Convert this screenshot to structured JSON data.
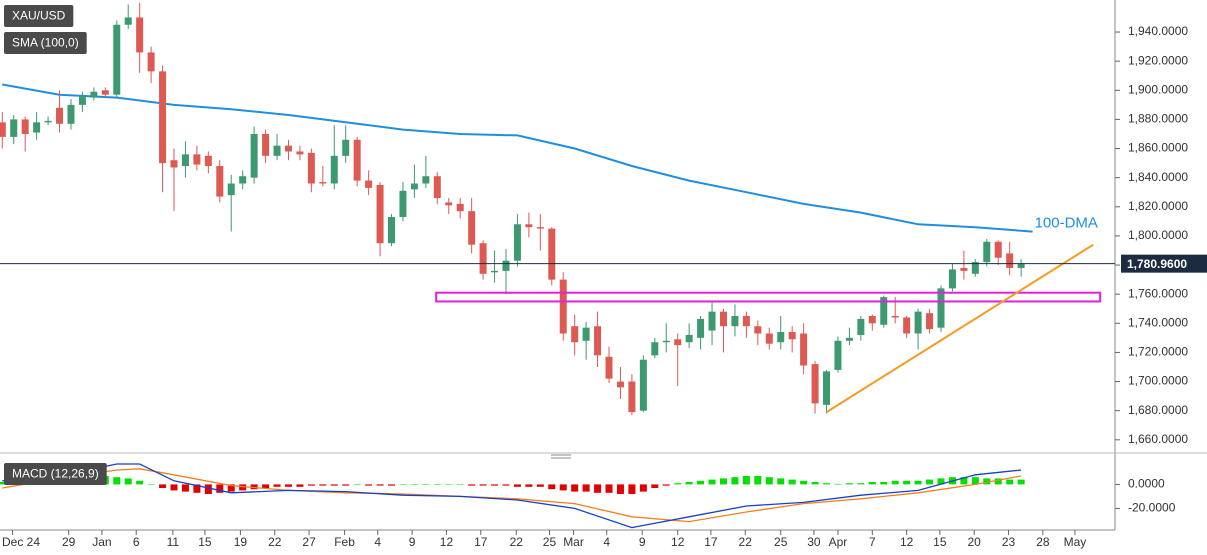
{
  "chart_data": [
    {
      "type": "candlestick",
      "title": "XAU/USD",
      "xlim": [
        -0.2,
        97.2
      ],
      "xticks": [
        {
          "value": 0.9,
          "label": "Dec 24"
        },
        {
          "value": 5.8,
          "label": "29"
        },
        {
          "value": 8.7,
          "label": "Jan"
        },
        {
          "value": 11.7,
          "label": "6"
        },
        {
          "value": 14.9,
          "label": "11"
        },
        {
          "value": 17.7,
          "label": "15"
        },
        {
          "value": 20.8,
          "label": "19"
        },
        {
          "value": 23.8,
          "label": "22"
        },
        {
          "value": 26.8,
          "label": "27"
        },
        {
          "value": 29.9,
          "label": "Feb"
        },
        {
          "value": 32.8,
          "label": "4"
        },
        {
          "value": 35.8,
          "label": "9"
        },
        {
          "value": 38.8,
          "label": "12"
        },
        {
          "value": 41.8,
          "label": "17"
        },
        {
          "value": 44.9,
          "label": "22"
        },
        {
          "value": 47.8,
          "label": "25"
        },
        {
          "value": 49.9,
          "label": "Mar"
        },
        {
          "value": 52.8,
          "label": "4"
        },
        {
          "value": 55.9,
          "label": "9"
        },
        {
          "value": 59.0,
          "label": "12"
        },
        {
          "value": 61.9,
          "label": "17"
        },
        {
          "value": 64.9,
          "label": "22"
        },
        {
          "value": 68.0,
          "label": "25"
        },
        {
          "value": 70.9,
          "label": "30"
        },
        {
          "value": 73.0,
          "label": "Apr"
        },
        {
          "value": 76.0,
          "label": "7"
        },
        {
          "value": 79.0,
          "label": "12"
        },
        {
          "value": 81.9,
          "label": "15"
        },
        {
          "value": 84.9,
          "label": "20"
        },
        {
          "value": 87.9,
          "label": "23"
        },
        {
          "value": 90.9,
          "label": "28"
        },
        {
          "value": 93.7,
          "label": "May"
        }
      ],
      "ylim": [
        1653,
        1962
      ],
      "yticks": [
        {
          "value": 1660,
          "label": "1,660.0000"
        },
        {
          "value": 1680,
          "label": "1,680.0000"
        },
        {
          "value": 1700,
          "label": "1,700.0000"
        },
        {
          "value": 1720,
          "label": "1,720.0000"
        },
        {
          "value": 1740,
          "label": "1,740.0000"
        },
        {
          "value": 1760,
          "label": "1,760.0000"
        },
        {
          "value": 1780,
          "label": "1,780.0000"
        },
        {
          "value": 1800,
          "label": "1,800.0000"
        },
        {
          "value": 1820,
          "label": "1,820.0000"
        },
        {
          "value": 1840,
          "label": "1,840.0000"
        },
        {
          "value": 1860,
          "label": "1,860.0000"
        },
        {
          "value": 1880,
          "label": "1,880.0000"
        },
        {
          "value": 1900,
          "label": "1,900.0000"
        },
        {
          "value": 1920,
          "label": "1,920.0000"
        },
        {
          "value": 1940,
          "label": "1,940.0000"
        }
      ],
      "up_color": "#3d9970",
      "down_color": "#dd5a52",
      "open": [
        1878,
        1868,
        1880,
        1871,
        1878,
        1888,
        1877,
        1890,
        1895,
        1900,
        1897,
        1945,
        1950,
        1926,
        1913,
        1852,
        1848,
        1856,
        1855,
        1848,
        1828,
        1836,
        1840,
        1870,
        1855,
        1862,
        1858,
        1857,
        1837,
        1836,
        1855,
        1866,
        1838,
        1835,
        1795,
        1813,
        1832,
        1836,
        1841,
        1823,
        1822,
        1817,
        1795,
        1775,
        1776,
        1783,
        1808,
        1806,
        1805,
        1770,
        1738,
        1728,
        1738,
        1717,
        1700,
        1700,
        1680,
        1718,
        1727,
        1729,
        1727,
        1730,
        1735,
        1748,
        1738,
        1745,
        1738,
        1733,
        1727,
        1734,
        1733,
        1712,
        1684,
        1708,
        1728,
        1732,
        1745,
        1739,
        1745,
        1744,
        1733,
        1747,
        1737,
        1764,
        1778,
        1774,
        1782,
        1796,
        1788,
        1778
      ],
      "high": [
        1885,
        1883,
        1882,
        1885,
        1882,
        1900,
        1894,
        1899,
        1902,
        1902,
        1948,
        1959,
        1960,
        1930,
        1917,
        1860,
        1865,
        1862,
        1858,
        1852,
        1842,
        1845,
        1875,
        1873,
        1870,
        1866,
        1862,
        1860,
        1848,
        1876,
        1876,
        1868,
        1845,
        1837,
        1815,
        1837,
        1849,
        1855,
        1844,
        1826,
        1826,
        1826,
        1797,
        1790,
        1791,
        1815,
        1816,
        1815,
        1806,
        1775,
        1746,
        1741,
        1748,
        1724,
        1710,
        1705,
        1718,
        1730,
        1740,
        1733,
        1740,
        1745,
        1755,
        1750,
        1753,
        1748,
        1742,
        1737,
        1745,
        1738,
        1740,
        1714,
        1708,
        1731,
        1737,
        1745,
        1746,
        1759,
        1758,
        1745,
        1750,
        1750,
        1766,
        1781,
        1790,
        1784,
        1798,
        1797,
        1796,
        1784
      ],
      "low": [
        1860,
        1863,
        1858,
        1866,
        1876,
        1871,
        1873,
        1885,
        1893,
        1895,
        1895,
        1942,
        1912,
        1905,
        1830,
        1817,
        1840,
        1845,
        1843,
        1823,
        1803,
        1832,
        1836,
        1850,
        1852,
        1852,
        1852,
        1830,
        1834,
        1832,
        1850,
        1834,
        1828,
        1786,
        1793,
        1810,
        1826,
        1833,
        1822,
        1815,
        1812,
        1788,
        1770,
        1768,
        1760,
        1779,
        1799,
        1790,
        1766,
        1728,
        1718,
        1715,
        1710,
        1699,
        1688,
        1677,
        1679,
        1716,
        1720,
        1697,
        1723,
        1722,
        1725,
        1720,
        1731,
        1730,
        1725,
        1722,
        1722,
        1720,
        1705,
        1678,
        1678,
        1706,
        1725,
        1728,
        1735,
        1737,
        1740,
        1730,
        1722,
        1733,
        1734,
        1762,
        1770,
        1772,
        1779,
        1780,
        1773,
        1772
      ],
      "close": [
        1868,
        1880,
        1870,
        1878,
        1879,
        1877,
        1890,
        1896,
        1899,
        1897,
        1945,
        1950,
        1926,
        1913,
        1850,
        1847,
        1856,
        1849,
        1848,
        1827,
        1836,
        1841,
        1870,
        1855,
        1862,
        1858,
        1856,
        1836,
        1836,
        1855,
        1866,
        1838,
        1833,
        1795,
        1813,
        1831,
        1836,
        1841,
        1826,
        1821,
        1817,
        1794,
        1774,
        1776,
        1783,
        1808,
        1806,
        1805,
        1770,
        1733,
        1727,
        1737,
        1718,
        1702,
        1696,
        1679,
        1715,
        1727,
        1728,
        1725,
        1732,
        1743,
        1748,
        1738,
        1745,
        1738,
        1733,
        1726,
        1734,
        1729,
        1711,
        1685,
        1707,
        1728,
        1730,
        1743,
        1740,
        1758,
        1744,
        1733,
        1748,
        1736,
        1764,
        1777,
        1776,
        1782,
        1796,
        1785,
        1778,
        1780.96
      ],
      "sma": {
        "name": "SMA (100,0)",
        "color": "#1e8fe0",
        "x": [
          0,
          5,
          10,
          15,
          20,
          25,
          30,
          35,
          40,
          45,
          50,
          55,
          60,
          65,
          70,
          75,
          80,
          85,
          90
        ],
        "values": [
          1904,
          1897,
          1895,
          1890,
          1887,
          1883,
          1878,
          1873,
          1870,
          1869,
          1860,
          1848,
          1838,
          1830,
          1822,
          1816,
          1808,
          1806,
          1803
        ]
      },
      "annotation": "100-DMA",
      "last_price": {
        "value": 1780.96,
        "label": "1,780.9600"
      },
      "zone": {
        "color": "#e020e0",
        "x": [
          37.9,
          95.9
        ],
        "values": [
          1755,
          1761
        ]
      },
      "trendline": {
        "color": "#f59b1f",
        "x": [
          72.0,
          95.3
        ],
        "values": [
          1679,
          1794
        ]
      }
    },
    {
      "type": "macd",
      "title": "MACD (12,26,9)",
      "xlim": [
        -0.2,
        97.2
      ],
      "ylim": [
        -38,
        22
      ],
      "yticks": [
        {
          "value": 0,
          "label": "0.0000"
        },
        {
          "value": -20,
          "label": "-20.0000"
        }
      ],
      "histogram": {
        "up_color": "#00e000",
        "down_color": "#e00000",
        "values": [
          2,
          3,
          4,
          4,
          5,
          6,
          6,
          6,
          7,
          7,
          6,
          5,
          3,
          0,
          -3,
          -5,
          -6,
          -7,
          -8,
          -7,
          -6,
          -5,
          -4,
          -3,
          -2,
          -2,
          -2,
          -1,
          -1,
          -1,
          -1,
          0,
          -1,
          -1,
          -1,
          0,
          0,
          0,
          0,
          0,
          0,
          -1,
          -1,
          -1,
          -1,
          -2,
          -2,
          -2,
          -4,
          -5,
          -6,
          -6,
          -7,
          -7,
          -8,
          -8,
          -6,
          -3,
          -1,
          1,
          2,
          3,
          4,
          5,
          6,
          7,
          7,
          6,
          5,
          4,
          3,
          2,
          1,
          0,
          1,
          1,
          2,
          2,
          3,
          3,
          3,
          4,
          5,
          6,
          6,
          6,
          5,
          5,
          4,
          4
        ]
      },
      "macd_line": {
        "color": "#1a3fc4",
        "x": [
          0,
          5,
          10,
          12,
          15,
          20,
          25,
          30,
          35,
          40,
          45,
          50,
          55,
          60,
          65,
          70,
          75,
          80,
          85,
          89
        ],
        "values": [
          3,
          7,
          17,
          17,
          3,
          -7,
          -5,
          -6,
          -9,
          -10,
          -13,
          -20,
          -36,
          -27,
          -18,
          -15,
          -9,
          -5,
          8,
          12
        ]
      },
      "signal_line": {
        "color": "#f08020",
        "x": [
          0,
          5,
          10,
          12,
          15,
          20,
          25,
          30,
          35,
          40,
          45,
          50,
          55,
          60,
          65,
          70,
          75,
          80,
          85,
          89
        ],
        "values": [
          -3,
          5,
          12,
          13,
          8,
          -1,
          -5,
          -7,
          -8,
          -10,
          -12,
          -16,
          -27,
          -31,
          -23,
          -16,
          -12,
          -7,
          0,
          7
        ]
      }
    }
  ]
}
